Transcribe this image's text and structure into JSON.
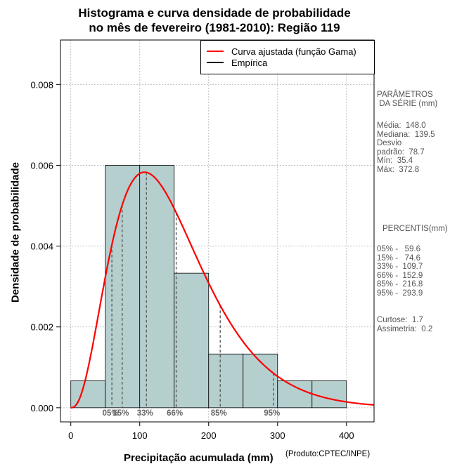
{
  "chart_data": {
    "type": "histogram",
    "title": "Histograma e curva densidade de probabilidade\nno mês de fevereiro (1981-2010): Região 119",
    "xlabel": "Precipitação acumulada (mm)",
    "ylabel": "Densidade de probabilidade",
    "xlim": [
      -15,
      440
    ],
    "ylim": [
      -0.00035,
      0.0091
    ],
    "x_ticks": [
      0,
      100,
      200,
      300,
      400
    ],
    "y_ticks": [
      0.0,
      0.002,
      0.004,
      0.006,
      0.008
    ],
    "y_tick_labels": [
      "0.000",
      "0.002",
      "0.004",
      "0.006",
      "0.008"
    ],
    "grid": true,
    "bins": [
      {
        "start": 0,
        "end": 50,
        "density": 0.000667
      },
      {
        "start": 50,
        "end": 100,
        "density": 0.006
      },
      {
        "start": 100,
        "end": 150,
        "density": 0.006
      },
      {
        "start": 150,
        "end": 200,
        "density": 0.00333
      },
      {
        "start": 200,
        "end": 250,
        "density": 0.00133
      },
      {
        "start": 250,
        "end": 300,
        "density": 0.00133
      },
      {
        "start": 300,
        "end": 350,
        "density": 0.000667
      },
      {
        "start": 350,
        "end": 400,
        "density": 0.000667
      }
    ],
    "fitted_curve": {
      "name": "Curva ajustada (função Gama)",
      "color": "#ff0000",
      "shape": 3.6,
      "mean": 148.0
    },
    "percentile_markers": [
      {
        "label": "05%",
        "x": 59.6
      },
      {
        "label": "15%",
        "x": 74.6
      },
      {
        "label": "33%",
        "x": 109.7
      },
      {
        "label": "66%",
        "x": 152.9
      },
      {
        "label": "85%",
        "x": 216.8
      },
      {
        "label": "95%",
        "x": 293.9
      }
    ],
    "legend": {
      "position": "top-right",
      "entries": [
        {
          "label": "Curva ajustada (função Gama)",
          "color": "#ff0000"
        },
        {
          "label": "Empírica",
          "color": "#000000"
        }
      ]
    },
    "bar_color": "#b5cfcf"
  },
  "product_note": "(Produto:CPTEC/INPE)",
  "parameters": {
    "title": "PARÂMETROS\n DA SÉRIE (mm)",
    "body": "Média:  148.0\nMediana:  139.5\nDesvio\npadrão:  78.7\nMín:  35.4\nMáx:  372.8"
  },
  "percentiles": {
    "title": "PERCENTIS(mm)",
    "body": "05% -   59.6\n15% -   74.6\n33% -  109.7\n66% -  152.9\n85% -  216.8\n95% -  293.9"
  },
  "shape_stats": {
    "body": "Curtose:  1.7\nAssimetria:  0.2"
  }
}
